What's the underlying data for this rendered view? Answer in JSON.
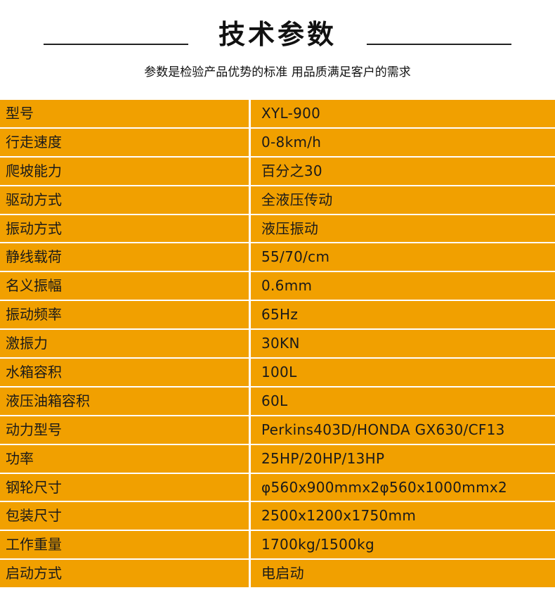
{
  "header": {
    "title": "技术参数",
    "subtitle": "参数是检验产品优势的标准  用品质满足客户的需求"
  },
  "colors": {
    "table_bg": "#F1A000",
    "divider": "#FFFFFF"
  },
  "specs": [
    {
      "label": "型号",
      "value": "XYL-900"
    },
    {
      "label": "行走速度",
      "value": "0-8km/h"
    },
    {
      "label": "爬坡能力",
      "value": "百分之30"
    },
    {
      "label": "驱动方式",
      "value": "全液压传动"
    },
    {
      "label": "振动方式",
      "value": "液压振动"
    },
    {
      "label": "静线载荷",
      "value": "55/70/cm"
    },
    {
      "label": "名义振幅",
      "value": "0.6mm"
    },
    {
      "label": "振动频率",
      "value": "65Hz"
    },
    {
      "label": "激振力",
      "value": "30KN"
    },
    {
      "label": "水箱容积",
      "value": "100L"
    },
    {
      "label": "液压油箱容积",
      "value": "60L"
    },
    {
      "label": "动力型号",
      "value": "Perkins403D/HONDA GX630/CF13"
    },
    {
      "label": "功率",
      "value": "25HP/20HP/13HP"
    },
    {
      "label": "钢轮尺寸",
      "value": "φ560x900mmx2φ560x1000mmx2"
    },
    {
      "label": "包装尺寸",
      "value": "2500x1200x1750mm"
    },
    {
      "label": "工作重量",
      "value": "1700kg/1500kg"
    },
    {
      "label": "启动方式",
      "value": "电启动"
    }
  ]
}
